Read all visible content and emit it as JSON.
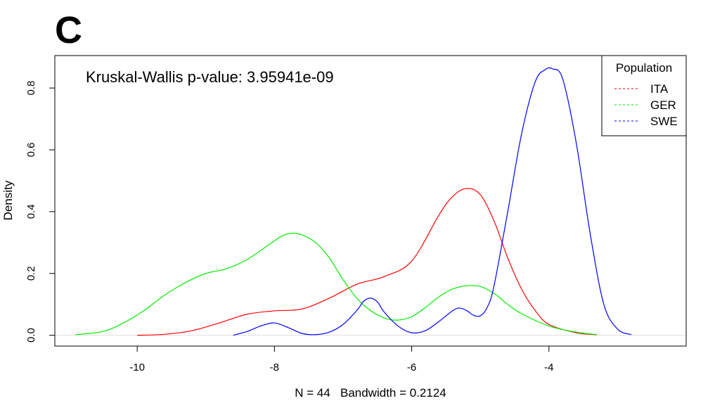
{
  "panel_label": "C",
  "colors": {
    "ITA": "#ff0000",
    "GER": "#00ee00",
    "SWE": "#0000ff",
    "frame": "#000000",
    "zero_line": "#e0e0e0"
  },
  "chart_data": {
    "type": "line",
    "title": "",
    "annotation": "Kruskal-Wallis p-value: 3.95941e-09",
    "xlabel": "N = 44   Bandwidth = 0.2124",
    "ylabel": "Density",
    "xlim": [
      -11.2,
      -2.0
    ],
    "ylim": [
      -0.035,
      0.905
    ],
    "x_ticks": [
      -10,
      -8,
      -6,
      -4
    ],
    "x_tick_labels": [
      "-10",
      "-8",
      "-6",
      "-4"
    ],
    "y_ticks": [
      0.0,
      0.2,
      0.4,
      0.6,
      0.8
    ],
    "y_tick_labels": [
      "0.0",
      "0.2",
      "0.4",
      "0.6",
      "0.8"
    ],
    "grid": false,
    "legend": {
      "title": "Population",
      "position": "top-right",
      "entries": [
        "ITA",
        "GER",
        "SWE"
      ]
    },
    "series": [
      {
        "name": "ITA",
        "x": [
          -10.0,
          -9.6,
          -9.2,
          -8.8,
          -8.4,
          -8.0,
          -7.6,
          -7.2,
          -6.8,
          -6.4,
          -6.0,
          -5.6,
          -5.4,
          -5.2,
          -5.0,
          -4.8,
          -4.6,
          -4.4,
          -4.2,
          -4.0,
          -3.6,
          -3.3
        ],
        "y": [
          0.0,
          0.003,
          0.015,
          0.04,
          0.068,
          0.079,
          0.085,
          0.12,
          0.165,
          0.19,
          0.24,
          0.39,
          0.45,
          0.475,
          0.455,
          0.37,
          0.25,
          0.15,
          0.08,
          0.035,
          0.008,
          0.002
        ]
      },
      {
        "name": "GER",
        "x": [
          -10.9,
          -10.5,
          -10.2,
          -9.9,
          -9.6,
          -9.3,
          -9.0,
          -8.7,
          -8.4,
          -8.1,
          -7.9,
          -7.75,
          -7.6,
          -7.4,
          -7.2,
          -7.0,
          -6.8,
          -6.6,
          -6.4,
          -6.2,
          -6.0,
          -5.8,
          -5.6,
          -5.4,
          -5.2,
          -5.0,
          -4.8,
          -4.6,
          -4.4,
          -4.0,
          -3.6,
          -3.3
        ],
        "y": [
          0.002,
          0.012,
          0.04,
          0.08,
          0.13,
          0.17,
          0.2,
          0.215,
          0.245,
          0.29,
          0.32,
          0.33,
          0.325,
          0.3,
          0.25,
          0.18,
          0.12,
          0.08,
          0.056,
          0.049,
          0.06,
          0.09,
          0.125,
          0.15,
          0.16,
          0.158,
          0.135,
          0.1,
          0.07,
          0.03,
          0.01,
          0.002
        ]
      },
      {
        "name": "SWE",
        "x": [
          -8.6,
          -8.4,
          -8.2,
          -8.0,
          -7.8,
          -7.6,
          -7.4,
          -7.2,
          -7.0,
          -6.8,
          -6.7,
          -6.6,
          -6.5,
          -6.4,
          -6.2,
          -6.0,
          -5.8,
          -5.6,
          -5.4,
          -5.3,
          -5.2,
          -5.1,
          -5.0,
          -4.9,
          -4.8,
          -4.6,
          -4.4,
          -4.2,
          -4.05,
          -3.95,
          -3.8,
          -3.6,
          -3.4,
          -3.2,
          -3.0,
          -2.8
        ],
        "y": [
          0.0,
          0.012,
          0.03,
          0.04,
          0.025,
          0.006,
          0.002,
          0.01,
          0.035,
          0.08,
          0.11,
          0.12,
          0.108,
          0.075,
          0.03,
          0.008,
          0.015,
          0.045,
          0.08,
          0.088,
          0.08,
          0.065,
          0.063,
          0.09,
          0.16,
          0.4,
          0.65,
          0.82,
          0.86,
          0.862,
          0.83,
          0.62,
          0.33,
          0.1,
          0.02,
          0.002
        ]
      }
    ]
  }
}
